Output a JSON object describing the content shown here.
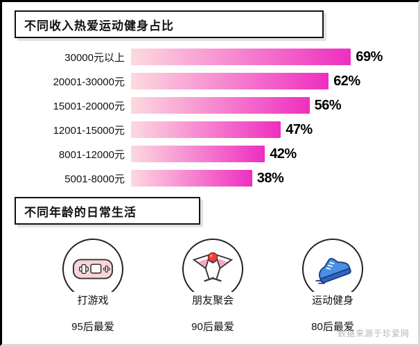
{
  "sections": {
    "income": {
      "title": "不同收入热爱运动健身占比"
    },
    "age": {
      "title": "不同年龄的日常生活"
    }
  },
  "chart_data": {
    "type": "bar",
    "orientation": "horizontal",
    "title": "不同收入热爱运动健身占比",
    "categories": [
      "30000元以上",
      "20001-30000元",
      "15001-20000元",
      "12001-15000元",
      "8001-12000元",
      "5001-8000元"
    ],
    "values": [
      69,
      62,
      56,
      47,
      42,
      38
    ],
    "value_suffix": "%",
    "xlim": [
      0,
      100
    ],
    "grid": false,
    "legend": false,
    "bar_gradient": [
      "#fdd9de",
      "#ee2ec1"
    ]
  },
  "activities": {
    "items": [
      {
        "label": "打游戏",
        "group": "95后最爱",
        "icon": "gamepad-icon"
      },
      {
        "label": "朋友聚会",
        "group": "90后最爱",
        "icon": "cocktail-icon"
      },
      {
        "label": "运动健身",
        "group": "80后最爱",
        "icon": "sneaker-icon"
      }
    ]
  },
  "footer": {
    "source": "数据来源于珍爱网"
  },
  "colors": {
    "bar_start": "#fdd9de",
    "bar_end": "#ee2ec1",
    "shoe_blue": "#4a90e2",
    "cherry_red": "#e8413c",
    "gamepad_pink": "#fbd4da"
  }
}
